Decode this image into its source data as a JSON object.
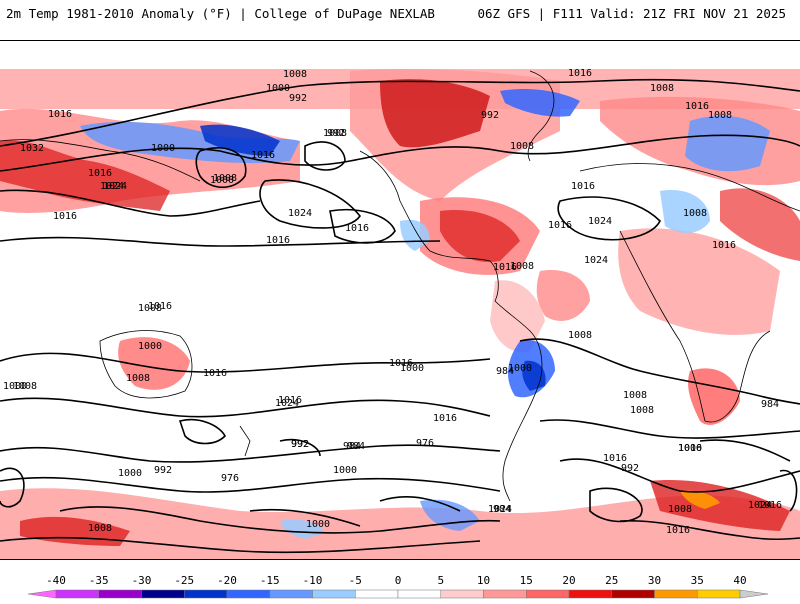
{
  "header": {
    "left": "2m Temp 1981-2010 Anomaly (°F) | College of DuPage NEXLAB",
    "right": "06Z GFS | F111 Valid: 21Z FRI NOV 21 2025"
  },
  "map": {
    "contour_labels": [
      "1008",
      "1000",
      "992",
      "1016",
      "1008",
      "1016",
      "1008",
      "992",
      "1008",
      "1016",
      "1032",
      "1000",
      "1016",
      "1024",
      "1024",
      "1016",
      "1000",
      "1008",
      "1016",
      "1024",
      "1024",
      "1016",
      "1008",
      "1016",
      "1008",
      "1008",
      "992",
      "1016",
      "1024",
      "1016",
      "1016",
      "1016",
      "1016",
      "1008",
      "1000",
      "1016",
      "1024",
      "1016",
      "1008",
      "1008",
      "984",
      "1016",
      "1000",
      "1016",
      "1008",
      "1000",
      "992",
      "984",
      "976",
      "1008",
      "1000",
      "992",
      "984",
      "976",
      "984",
      "1008",
      "1024",
      "1000",
      "992",
      "1000",
      "1016",
      "1008",
      "1024",
      "1016",
      "984",
      "1000",
      "992",
      "1016",
      "1008",
      "1016",
      "1000"
    ]
  },
  "colorbar": {
    "ticks": [
      "-40",
      "-35",
      "-30",
      "-25",
      "-20",
      "-15",
      "-10",
      "-5",
      "0",
      "5",
      "10",
      "15",
      "20",
      "25",
      "30",
      "35",
      "40"
    ],
    "colors": [
      "#ff66ff",
      "#cc33ff",
      "#9900cc",
      "#00008b",
      "#0033cc",
      "#3366ff",
      "#6699ff",
      "#99ccff",
      "#ffffff",
      "#ffffff",
      "#ffcccc",
      "#ff9999",
      "#ff6666",
      "#ee1111",
      "#b00000",
      "#ff9900",
      "#ffcc00",
      "#cccccc"
    ]
  }
}
